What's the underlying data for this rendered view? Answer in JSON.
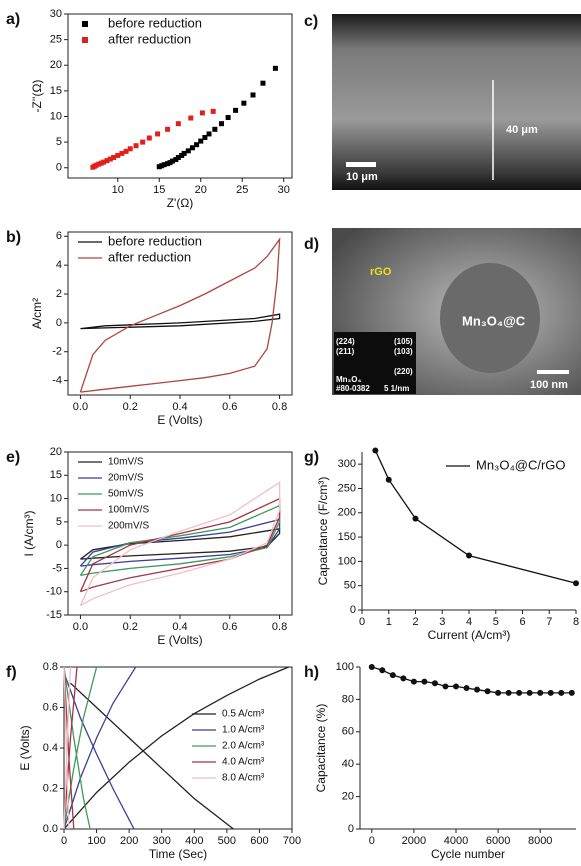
{
  "chart_data": [
    {
      "type": "scatter",
      "label": "a)",
      "xlabel": "Z'(Ω)",
      "ylabel": "-Z''(Ω)",
      "xlim": [
        4,
        31
      ],
      "ylim": [
        -2,
        30
      ],
      "xticks": [
        10,
        15,
        20,
        25,
        30
      ],
      "yticks": [
        0,
        5,
        10,
        15,
        20,
        25,
        30
      ],
      "legend": "upper left",
      "marker": "square",
      "frame": true,
      "series": [
        {
          "name": "before reduction",
          "color": "#000000",
          "x": [
            15,
            15.3,
            15.6,
            16,
            16.3,
            16.6,
            17,
            17.3,
            17.7,
            18,
            18.5,
            19,
            19.5,
            20,
            20.5,
            21,
            21.7,
            22.5,
            23.3,
            24.2,
            25.2,
            26.3,
            27.5,
            29
          ],
          "y": [
            0.2,
            0.4,
            0.6,
            0.8,
            1.0,
            1.3,
            1.6,
            2,
            2.4,
            2.8,
            3.3,
            3.9,
            4.5,
            5.2,
            5.9,
            6.6,
            7.5,
            8.6,
            9.8,
            11.2,
            12.6,
            14.2,
            16.5,
            19.4
          ]
        },
        {
          "name": "after reduction",
          "color": "#e0201c",
          "x": [
            7,
            7.2,
            7.4,
            7.7,
            8,
            8.3,
            8.7,
            9.1,
            9.5,
            10,
            10.5,
            11,
            11.5,
            12.2,
            13,
            13.8,
            14.8,
            16,
            17.3,
            18.8,
            20.2,
            21.5
          ],
          "y": [
            0.1,
            0.3,
            0.5,
            0.7,
            0.9,
            1.1,
            1.4,
            1.7,
            2.0,
            2.4,
            2.8,
            3.2,
            3.7,
            4.3,
            5,
            5.8,
            6.6,
            7.5,
            8.6,
            9.7,
            10.7,
            11
          ]
        }
      ]
    },
    {
      "type": "line",
      "label": "b)",
      "xlabel": "E (Volts)",
      "ylabel": "A/cm²",
      "xlim": [
        -0.05,
        0.85
      ],
      "ylim": [
        -5,
        6.3
      ],
      "xticks": [
        {
          "value": 0,
          "label": "0.0"
        },
        0.2,
        0.4,
        0.6,
        0.8
      ],
      "yticks": [
        -4,
        -2,
        0,
        2,
        4,
        6
      ],
      "legend": "upper left",
      "frame": true,
      "series": [
        {
          "name": "before reduction",
          "color": "#111111",
          "x": [
            0,
            0.1,
            0.4,
            0.7,
            0.8,
            0.8,
            0.7,
            0.4,
            0.1,
            0
          ],
          "y": [
            -0.4,
            -0.2,
            0,
            0.3,
            0.6,
            0.3,
            0.1,
            -0.2,
            -0.35,
            -0.4
          ]
        },
        {
          "name": "after reduction",
          "color": "#b0443c",
          "x": [
            0,
            0.05,
            0.1,
            0.2,
            0.3,
            0.4,
            0.5,
            0.6,
            0.7,
            0.75,
            0.8,
            0.79,
            0.77,
            0.75,
            0.7,
            0.6,
            0.5,
            0.4,
            0.3,
            0.2,
            0.1,
            0
          ],
          "y": [
            -4.8,
            -2.2,
            -1.2,
            -0.2,
            0.5,
            1.2,
            2,
            2.9,
            3.8,
            4.6,
            5.8,
            3,
            0,
            -1.8,
            -3,
            -3.5,
            -3.8,
            -4.0,
            -4.2,
            -4.4,
            -4.6,
            -4.8
          ]
        }
      ]
    },
    {
      "type": "line",
      "label": "e)",
      "xlabel": "E (Volts)",
      "ylabel": "I (A/cm³)",
      "xlim": [
        -0.05,
        0.85
      ],
      "ylim": [
        -15,
        20
      ],
      "xticks": [
        {
          "value": 0,
          "label": "0.0"
        },
        0.2,
        0.4,
        0.6,
        0.8
      ],
      "yticks": [
        -15,
        -10,
        -5,
        0,
        5,
        10,
        15,
        20
      ],
      "legend": "upper left",
      "frame": true,
      "series": [
        {
          "name": "10mV/S",
          "color": "#222222",
          "x": [
            0,
            0.05,
            0.2,
            0.4,
            0.6,
            0.8,
            0.8,
            0.75,
            0.6,
            0.4,
            0.2,
            0.05,
            0
          ],
          "y": [
            -3,
            -1,
            0.3,
            1,
            1.8,
            3.5,
            2.5,
            -0.3,
            -1.3,
            -1.8,
            -2.3,
            -2.8,
            -3
          ]
        },
        {
          "name": "20mV/S",
          "color": "#3b3f96",
          "x": [
            0,
            0.05,
            0.2,
            0.4,
            0.6,
            0.8,
            0.8,
            0.75,
            0.6,
            0.4,
            0.2,
            0.05,
            0
          ],
          "y": [
            -4.5,
            -1.5,
            0.5,
            1.5,
            2.8,
            5.5,
            3.5,
            -0.5,
            -2,
            -2.8,
            -3.5,
            -4.2,
            -4.5
          ]
        },
        {
          "name": "50mV/S",
          "color": "#3d9a5c",
          "x": [
            0,
            0.05,
            0.2,
            0.4,
            0.6,
            0.8,
            0.8,
            0.75,
            0.6,
            0.4,
            0.2,
            0.05,
            0
          ],
          "y": [
            -6.5,
            -2.5,
            0.5,
            2,
            3.8,
            8.5,
            5,
            -0.5,
            -2.5,
            -4,
            -5,
            -6,
            -6.5
          ]
        },
        {
          "name": "100mV/S",
          "color": "#a23445",
          "x": [
            0,
            0.05,
            0.2,
            0.4,
            0.6,
            0.8,
            0.8,
            0.75,
            0.6,
            0.4,
            0.2,
            0.05,
            0
          ],
          "y": [
            -10,
            -4,
            0,
            2.5,
            5,
            10,
            6,
            0,
            -3,
            -5,
            -7,
            -9,
            -10
          ]
        },
        {
          "name": "200mV/S",
          "color": "#f2bfc8",
          "x": [
            0,
            0.05,
            0.2,
            0.4,
            0.6,
            0.8,
            0.8,
            0.75,
            0.6,
            0.4,
            0.2,
            0.05,
            0
          ],
          "y": [
            -13,
            -7,
            -1,
            3,
            6.5,
            13.5,
            7.5,
            0.5,
            -3,
            -6,
            -8.5,
            -11.5,
            -13
          ]
        }
      ]
    },
    {
      "type": "line",
      "label": "f)",
      "xlabel": "Time (Sec)",
      "ylabel": "E (Volts)",
      "xlim": [
        0,
        700
      ],
      "ylim": [
        0,
        0.8
      ],
      "xticks": [
        0,
        100,
        200,
        300,
        400,
        500,
        600,
        700
      ],
      "yticks": [
        {
          "value": 0,
          "label": "0.0"
        },
        0.2,
        0.4,
        0.6,
        0.8
      ],
      "legend": "center right",
      "frame": true,
      "series": [
        {
          "name": "0.5 A/cm³",
          "color": "#222222",
          "x": [
            0,
            100,
            200,
            300,
            400,
            500,
            600,
            690,
            null,
            20,
            100,
            200,
            300,
            400,
            520
          ],
          "y": [
            0,
            0.18,
            0.33,
            0.46,
            0.57,
            0.66,
            0.74,
            0.8,
            null,
            0.72,
            0.6,
            0.45,
            0.3,
            0.15,
            0
          ]
        },
        {
          "name": "1.0 A/cm³",
          "color": "#3b3f96",
          "x": [
            0,
            50,
            100,
            150,
            220,
            null,
            5,
            50,
            100,
            150,
            215
          ],
          "y": [
            0,
            0.25,
            0.45,
            0.62,
            0.8,
            null,
            0.75,
            0.55,
            0.37,
            0.2,
            0
          ]
        },
        {
          "name": "2.0 A/cm³",
          "color": "#3d9a5c",
          "x": [
            0,
            30,
            60,
            100,
            null,
            0,
            30,
            60,
            80
          ],
          "y": [
            0,
            0.3,
            0.55,
            0.8,
            null,
            0.8,
            0.45,
            0.15,
            0
          ]
        },
        {
          "name": "4.0 A/cm³",
          "color": "#a23445",
          "x": [
            0,
            20,
            40,
            null,
            0,
            15,
            30
          ],
          "y": [
            0,
            0.45,
            0.8,
            null,
            0.8,
            0.35,
            0
          ]
        },
        {
          "name": "8.0 A/cm³",
          "color": "#f2bfc8",
          "x": [
            0,
            10,
            20,
            null,
            0,
            8,
            15
          ],
          "y": [
            0,
            0.45,
            0.8,
            null,
            0.8,
            0.35,
            0
          ]
        }
      ]
    },
    {
      "type": "line",
      "label": "g)",
      "xlabel": "Current (A/cm³)",
      "ylabel": "Capacitance (F/cm³)",
      "xlim": [
        0,
        8
      ],
      "ylim": [
        0,
        325
      ],
      "xticks": [
        0,
        1,
        2,
        3,
        4,
        5,
        6,
        7,
        8
      ],
      "yticks": [
        0,
        50,
        100,
        150,
        200,
        250,
        300
      ],
      "legend": "upper right",
      "marker": "circle",
      "frame": false,
      "series": [
        {
          "name": "Mn₃O₄@C/rGO",
          "color": "#111111",
          "x": [
            0.5,
            1,
            2,
            4,
            8
          ],
          "y": [
            328,
            268,
            188,
            112,
            55
          ]
        }
      ]
    },
    {
      "type": "line",
      "label": "h)",
      "xlabel": "Cycle number",
      "ylabel": "Capacitance (%)",
      "xlim": [
        -560,
        9700
      ],
      "ylim": [
        0,
        100
      ],
      "xticks": [
        0,
        2000,
        4000,
        6000,
        8000
      ],
      "yticks": [
        0,
        20,
        40,
        60,
        80,
        100
      ],
      "marker": "circle",
      "frame": false,
      "series": [
        {
          "color": "#111111",
          "x": [
            0,
            500,
            1000,
            1500,
            2000,
            2500,
            3000,
            3500,
            4000,
            4500,
            5000,
            5500,
            6000,
            6500,
            7000,
            7500,
            8000,
            8500,
            9000,
            9500
          ],
          "y": [
            100,
            98,
            95,
            93,
            91,
            91,
            90,
            88,
            88,
            87,
            86,
            85,
            84,
            84,
            84,
            84,
            84,
            84,
            84,
            84
          ]
        }
      ]
    }
  ],
  "images": [
    {
      "label": "c)",
      "texts": [
        "40 μm",
        "10 μm"
      ]
    },
    {
      "label": "d)",
      "texts": [
        "rGO",
        "Mn₃O₄@C",
        "(224)",
        "(105)",
        "(211)",
        "(103)",
        "(220)",
        "Mn₃O₄",
        "#80-0382",
        "5 1/nm",
        "100 nm"
      ]
    }
  ]
}
